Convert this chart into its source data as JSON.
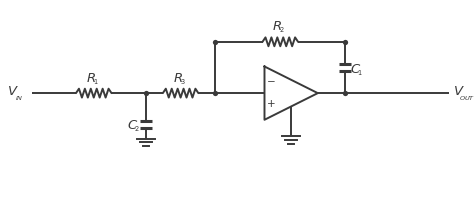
{
  "bg_color": "#ffffff",
  "line_color": "#3a3a3a",
  "line_width": 1.4,
  "font_size": 9.5,
  "label_color": "#3a3a3a"
}
